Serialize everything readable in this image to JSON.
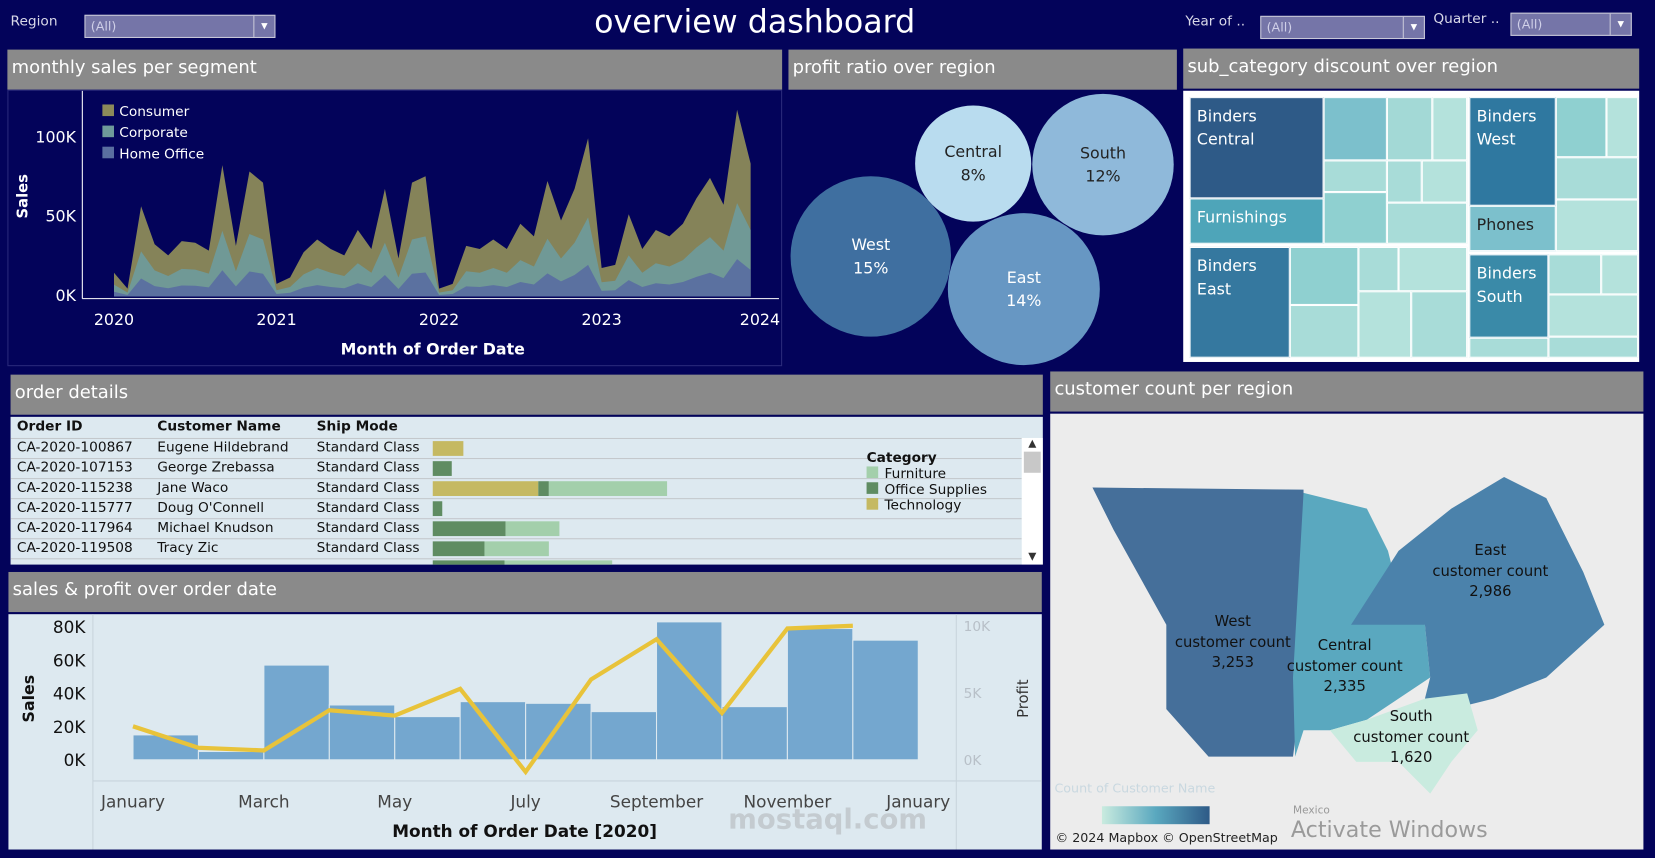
{
  "header": {
    "title": "overview dashboard",
    "region_label": "Region",
    "region_value": "(All)",
    "year_label": "Year of ..",
    "year_value": "(All)",
    "quarter_label": "Quarter ..",
    "quarter_value": "(All)"
  },
  "colors": {
    "background": "#03035a",
    "title_bar": "#8a8a8a",
    "consumer": "#8c8a5a",
    "corporate": "#6f9a9a",
    "home_office": "#5a6fa0",
    "furniture": "#a3cfab",
    "office_supplies": "#5f8c62",
    "technology": "#c5b962",
    "bars": "#74a7cf",
    "profit_line": "#e8c33a"
  },
  "monthly_sales": {
    "title": "monthly sales per segment",
    "chart_data": {
      "type": "area",
      "stacked": true,
      "xlabel": "Month of Order Date",
      "ylabel": "Sales",
      "x_ticks": [
        "2020",
        "2021",
        "2022",
        "2023",
        "2024"
      ],
      "y_ticks": [
        "0K",
        "50K",
        "100K"
      ],
      "ylim": [
        0,
        120000
      ],
      "legend": [
        "Consumer",
        "Corporate",
        "Home Office"
      ],
      "legend_placement": "top-left",
      "totals_k": [
        15,
        5,
        57,
        33,
        26,
        35,
        34,
        29,
        83,
        32,
        79,
        72,
        8,
        12,
        28,
        36,
        30,
        26,
        42,
        30,
        68,
        24,
        72,
        76,
        5,
        8,
        32,
        30,
        36,
        30,
        46,
        38,
        73,
        48,
        68,
        100,
        18,
        20,
        52,
        30,
        42,
        38,
        46,
        62,
        75,
        58,
        118,
        84
      ],
      "share": {
        "Consumer": 0.5,
        "Corporate": 0.3,
        "Home Office": 0.2
      }
    }
  },
  "profit_ratio": {
    "title": "profit ratio over region",
    "chart_data": {
      "type": "bubble",
      "items": [
        {
          "region": "Central",
          "label": "8%",
          "value": 8
        },
        {
          "region": "South",
          "label": "12%",
          "value": 12
        },
        {
          "region": "West",
          "label": "15%",
          "value": 15
        },
        {
          "region": "East",
          "label": "14%",
          "value": 14
        }
      ]
    }
  },
  "treemap": {
    "title": "sub_category discount over region",
    "labels": [
      {
        "name": "Binders",
        "sub": "Central"
      },
      {
        "name": "Furnishings",
        "sub": ""
      },
      {
        "name": "Binders",
        "sub": "West"
      },
      {
        "name": "Phones",
        "sub": ""
      },
      {
        "name": "Binders",
        "sub": "East"
      },
      {
        "name": "Binders",
        "sub": "South"
      }
    ]
  },
  "orders": {
    "title": "order details",
    "columns": [
      "Order ID",
      "Customer Name",
      "Ship Mode"
    ],
    "rows": [
      {
        "id": "CA-2020-100867",
        "customer": "Eugene Hildebrand",
        "ship": "Standard Class",
        "technology": 29,
        "office_supplies": 0,
        "furniture": 0
      },
      {
        "id": "CA-2020-107153",
        "customer": "George Zrebassa",
        "ship": "Standard Class",
        "technology": 0,
        "office_supplies": 18,
        "furniture": 0
      },
      {
        "id": "CA-2020-115238",
        "customer": "Jane Waco",
        "ship": "Standard Class",
        "technology": 100,
        "office_supplies": 10,
        "furniture": 112
      },
      {
        "id": "CA-2020-115777",
        "customer": "Doug O'Connell",
        "ship": "Standard Class",
        "technology": 0,
        "office_supplies": 9,
        "furniture": 0
      },
      {
        "id": "CA-2020-117964",
        "customer": "Michael Knudson",
        "ship": "Standard Class",
        "technology": 0,
        "office_supplies": 69,
        "furniture": 51
      },
      {
        "id": "CA-2020-119508",
        "customer": "Tracy Zic",
        "ship": "Standard Class",
        "technology": 0,
        "office_supplies": 49,
        "furniture": 61
      }
    ],
    "legend_title": "Category",
    "legend": [
      "Furniture",
      "Office Supplies",
      "Technology"
    ]
  },
  "sales_profit": {
    "title": "sales & profit over order date",
    "chart_data": {
      "type": "bar+line",
      "xlabel": "Month of Order Date [2020]",
      "ylabel": "Sales",
      "y2label": "Profit",
      "x_ticks": [
        "January",
        "March",
        "May",
        "July",
        "September",
        "November",
        "January"
      ],
      "y_ticks": [
        "0K",
        "20K",
        "40K",
        "60K",
        "80K"
      ],
      "y2_ticks": [
        "0K",
        "5K",
        "10K"
      ],
      "ylim": [
        0,
        85000
      ],
      "y2lim": [
        -1500,
        10500
      ],
      "sales": [
        15000,
        5000,
        57000,
        33000,
        26000,
        35000,
        34000,
        29000,
        83000,
        32000,
        79000,
        72000
      ],
      "profit": [
        2500,
        900,
        700,
        3700,
        3300,
        5300,
        -900,
        6000,
        9000,
        3500,
        9800,
        10000
      ]
    }
  },
  "map": {
    "title": "customer count per region",
    "regions": [
      {
        "name": "West",
        "label": "customer count",
        "count": "3,253"
      },
      {
        "name": "Central",
        "label": "customer count",
        "count": "2,335"
      },
      {
        "name": "East",
        "label": "customer count",
        "count": "2,986"
      },
      {
        "name": "South",
        "label": "customer count",
        "count": "1,620"
      }
    ],
    "legend_title": "Count of Customer Name",
    "attribution": "© 2024 Mapbox © OpenStreetMap",
    "country_label": "Mexico"
  },
  "overlay": {
    "windows": "Activate Windows",
    "watermark": "mostaql.com"
  }
}
